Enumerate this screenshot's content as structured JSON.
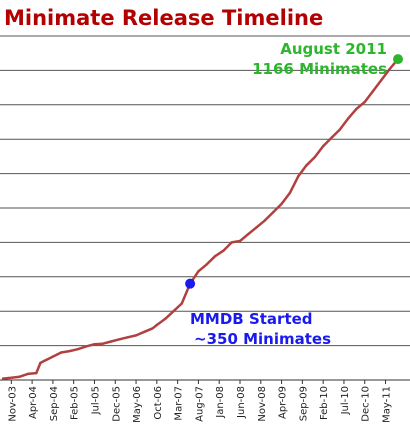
{
  "chart_data": {
    "type": "line",
    "title": "Minimate Release Timeline",
    "xlabel": "",
    "ylabel": "",
    "x_tick_labels": [
      "Nov-03",
      "Apr-04",
      "Sep-04",
      "Feb-05",
      "Jul-05",
      "Dec-05",
      "May-06",
      "Oct-06",
      "Mar-07",
      "Aug-07",
      "Jan-08",
      "Jun-08",
      "Nov-08",
      "Apr-09",
      "Sep-09",
      "Feb-10",
      "Jul-10",
      "Dec-10",
      "May-11"
    ],
    "ylim": [
      0,
      1250
    ],
    "y_gridlines": [
      0,
      125,
      250,
      375,
      500,
      625,
      750,
      875,
      1000,
      1125,
      1250
    ],
    "grid": true,
    "series": [
      {
        "x": [
          "2003-09",
          "2003-11",
          "2004-01",
          "2004-03",
          "2004-05",
          "2004-06",
          "2004-07",
          "2004-09",
          "2004-11",
          "2005-01",
          "2005-03",
          "2005-05",
          "2005-07",
          "2005-09",
          "2005-11",
          "2006-01",
          "2006-03",
          "2006-05",
          "2006-07",
          "2006-09",
          "2006-10",
          "2006-12",
          "2007-02",
          "2007-04",
          "2007-06",
          "2007-08",
          "2007-10",
          "2007-12",
          "2008-02",
          "2008-04",
          "2008-06",
          "2008-08",
          "2008-10",
          "2008-12",
          "2009-02",
          "2009-04",
          "2009-06",
          "2009-08",
          "2009-10",
          "2009-12",
          "2010-02",
          "2010-04",
          "2010-06",
          "2010-08",
          "2010-10",
          "2010-12",
          "2011-02",
          "2011-04",
          "2011-06",
          "2011-08"
        ],
        "values": [
          5,
          8,
          12,
          22,
          25,
          62,
          70,
          85,
          100,
          105,
          112,
          122,
          130,
          132,
          140,
          148,
          155,
          162,
          175,
          188,
          200,
          222,
          250,
          278,
          350,
          395,
          420,
          450,
          470,
          500,
          505,
          530,
          555,
          580,
          610,
          640,
          680,
          740,
          780,
          810,
          850,
          880,
          910,
          950,
          985,
          1010,
          1050,
          1090,
          1130,
          1166
        ]
      }
    ],
    "annotations": [
      {
        "text_lines": [
          "August 2011",
          "1166 Minimates"
        ],
        "x": "2011-08",
        "y": 1166,
        "color": "#2db52d"
      },
      {
        "text_lines": [
          "MMDB Started",
          "~350 Minimates"
        ],
        "x": "2007-06",
        "y": 350,
        "color": "#1a1aee"
      }
    ],
    "colors": {
      "title": "#b30000",
      "line": "#b24040",
      "grid": "#555555"
    }
  }
}
